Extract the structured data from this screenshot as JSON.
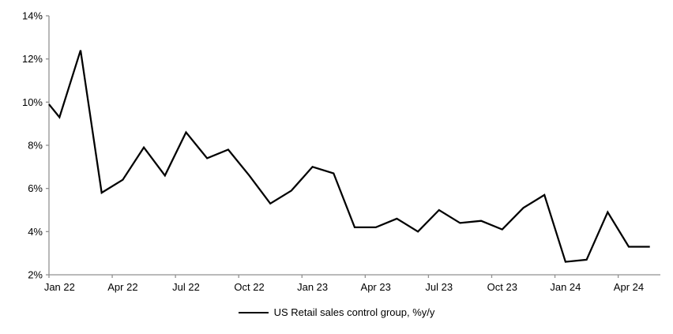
{
  "chart_data": {
    "type": "line",
    "title": "",
    "legend_label": "US Retail sales control group, %y/y",
    "legend_position": "bottom",
    "grid": false,
    "background_color": "#ffffff",
    "axis_color": "#919191",
    "line_color": "#000000",
    "x_axis": {
      "tick_label_interval_months": 3,
      "tick_labels": [
        "Jan 22",
        "Apr 22",
        "Jul 22",
        "Oct 22",
        "Jan 23",
        "Apr 23",
        "Jul 23",
        "Oct 23",
        "Jan 24",
        "Apr 24"
      ]
    },
    "y_axis": {
      "min": 2,
      "max": 14,
      "step": 2,
      "tick_labels": [
        "2%",
        "4%",
        "6%",
        "8%",
        "10%",
        "12%",
        "14%"
      ],
      "format": "percent"
    },
    "series": [
      {
        "name": "US Retail sales control group, %y/y",
        "color": "#000000",
        "edge_entry_value": 9.9,
        "categories": [
          "Jan 22",
          "Feb 22",
          "Mar 22",
          "Apr 22",
          "May 22",
          "Jun 22",
          "Jul 22",
          "Aug 22",
          "Sep 22",
          "Oct 22",
          "Nov 22",
          "Dec 22",
          "Jan 23",
          "Feb 23",
          "Mar 23",
          "Apr 23",
          "May 23",
          "Jun 23",
          "Jul 23",
          "Aug 23",
          "Sep 23",
          "Oct 23",
          "Nov 23",
          "Dec 23",
          "Jan 24",
          "Feb 24",
          "Mar 24",
          "Apr 24",
          "May 24"
        ],
        "values": [
          9.3,
          12.4,
          5.8,
          6.4,
          7.9,
          6.6,
          8.6,
          7.4,
          7.8,
          6.6,
          5.3,
          5.9,
          7.0,
          6.7,
          4.2,
          4.2,
          4.6,
          4.0,
          5.0,
          4.4,
          4.5,
          4.1,
          5.1,
          5.7,
          2.6,
          2.7,
          4.9,
          3.3,
          3.3
        ]
      }
    ]
  }
}
